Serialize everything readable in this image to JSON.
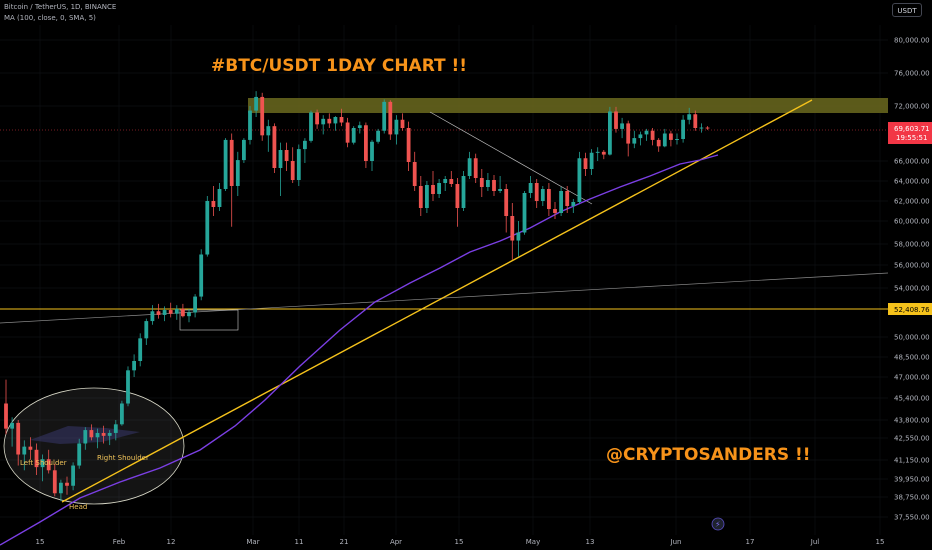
{
  "header": {
    "symbol_line": "Bitcoin / TetherUS, 1D, BINANCE",
    "indicator_line": "MA (100, close, 0, SMA, 5)",
    "currency_button": "USDT"
  },
  "annotations": {
    "title": "#BTC/USDT 1DAY CHART !!",
    "handle": "@CRYPTOSANDERS !!",
    "left_shoulder": "Left Shoulder",
    "right_shoulder": "Right Shoulder",
    "head": "Head"
  },
  "colors": {
    "background": "#000000",
    "up_candle": "#26a69a",
    "down_candle": "#ef5350",
    "ma_line": "#7b3fe4",
    "trendline": "#f5c21b",
    "orange_text": "#f7931a",
    "zone_fill": "#6b6a1e",
    "price_badge_red": "#f23645",
    "support_badge": "#f5c21b"
  },
  "chart_data": {
    "type": "candlestick",
    "y_ticks": [
      "80,000.00",
      "76,000.00",
      "72,000.00",
      "66,000.00",
      "64,000.00",
      "62,000.00",
      "60,000.00",
      "58,000.00",
      "56,000.00",
      "54,000.00",
      "50,000.00",
      "48,500.00",
      "47,000.00",
      "45,400.00",
      "43,800.00",
      "42,550.00",
      "41,150.00",
      "39,950.00",
      "38,750.00",
      "37,550.00"
    ],
    "x_ticks": [
      "15",
      "Feb",
      "12",
      "Mar",
      "11",
      "21",
      "Apr",
      "15",
      "May",
      "13",
      "Jun",
      "17",
      "Jul",
      "15"
    ],
    "current_price": "69,603.71",
    "countdown": "19:55:51",
    "support_price": "52,408.76",
    "resistance_zone": [
      70500,
      72800
    ],
    "ma_label": "MA 100",
    "candles": [
      [
        45000,
        46800,
        42800,
        43200
      ],
      [
        43200,
        44000,
        42000,
        43600
      ],
      [
        43600,
        43800,
        40800,
        41500
      ],
      [
        41500,
        42400,
        40500,
        42000
      ],
      [
        42000,
        42600,
        41200,
        41800
      ],
      [
        41800,
        42200,
        40200,
        40700
      ],
      [
        40700,
        41500,
        39800,
        41200
      ],
      [
        41200,
        41800,
        40300,
        40500
      ],
      [
        40500,
        40900,
        38800,
        39000
      ],
      [
        39000,
        39900,
        38500,
        39700
      ],
      [
        39700,
        40100,
        38900,
        39500
      ],
      [
        39500,
        41000,
        39200,
        40800
      ],
      [
        40800,
        42500,
        40600,
        42200
      ],
      [
        42200,
        43300,
        41800,
        43100
      ],
      [
        43100,
        43500,
        42400,
        42600
      ],
      [
        42600,
        43200,
        41900,
        42900
      ],
      [
        42900,
        43400,
        42200,
        42700
      ],
      [
        42700,
        43100,
        42100,
        42900
      ],
      [
        42900,
        43800,
        42400,
        43500
      ],
      [
        43500,
        45200,
        43400,
        45000
      ],
      [
        45000,
        47800,
        44800,
        47500
      ],
      [
        47500,
        48700,
        47000,
        48200
      ],
      [
        48200,
        50300,
        47800,
        49900
      ],
      [
        49900,
        51500,
        49400,
        51300
      ],
      [
        51300,
        52600,
        51000,
        52100
      ],
      [
        52100,
        52700,
        51500,
        51800
      ],
      [
        51800,
        52500,
        51300,
        52200
      ],
      [
        52200,
        52800,
        51600,
        51900
      ],
      [
        51900,
        52600,
        51400,
        52300
      ],
      [
        52300,
        52700,
        51600,
        51700
      ],
      [
        51700,
        52300,
        51200,
        52000
      ],
      [
        52000,
        53500,
        51600,
        53300
      ],
      [
        53300,
        57500,
        53000,
        57000
      ],
      [
        57000,
        62500,
        56800,
        62000
      ],
      [
        62000,
        63500,
        60500,
        61400
      ],
      [
        61400,
        63800,
        61000,
        63200
      ],
      [
        63200,
        68500,
        63000,
        68300
      ],
      [
        68300,
        69000,
        59500,
        63500
      ],
      [
        63500,
        67000,
        62500,
        66100
      ],
      [
        66100,
        68500,
        65800,
        68300
      ],
      [
        68300,
        72000,
        67800,
        71500
      ],
      [
        71500,
        73800,
        70800,
        73100
      ],
      [
        73100,
        73600,
        68200,
        68800
      ],
      [
        68800,
        70500,
        67000,
        69800
      ],
      [
        69800,
        70100,
        64800,
        65300
      ],
      [
        65300,
        68000,
        62500,
        67200
      ],
      [
        67200,
        68000,
        65000,
        66000
      ],
      [
        66000,
        67500,
        63800,
        64100
      ],
      [
        64100,
        67800,
        63500,
        67300
      ],
      [
        67300,
        68500,
        65800,
        68200
      ],
      [
        68200,
        71500,
        68000,
        71300
      ],
      [
        71300,
        71600,
        69500,
        70000
      ],
      [
        70000,
        71000,
        68900,
        70600
      ],
      [
        70600,
        71200,
        69600,
        70100
      ],
      [
        70100,
        70900,
        69300,
        70800
      ],
      [
        70800,
        71700,
        69800,
        70200
      ],
      [
        70200,
        70700,
        67500,
        68000
      ],
      [
        68000,
        69800,
        67800,
        69600
      ],
      [
        69600,
        70300,
        69000,
        69900
      ],
      [
        69900,
        70200,
        65300,
        66000
      ],
      [
        66000,
        68300,
        65000,
        68100
      ],
      [
        68100,
        69500,
        67900,
        69300
      ],
      [
        69300,
        72800,
        69000,
        72500
      ],
      [
        72500,
        72700,
        68300,
        68900
      ],
      [
        68900,
        71000,
        67800,
        70500
      ],
      [
        70500,
        71200,
        69300,
        69600
      ],
      [
        69600,
        70300,
        65000,
        65900
      ],
      [
        65900,
        67000,
        63000,
        63500
      ],
      [
        63500,
        64500,
        60500,
        61300
      ],
      [
        61300,
        64000,
        60800,
        63600
      ],
      [
        63600,
        65000,
        62000,
        62700
      ],
      [
        62700,
        64200,
        62300,
        63800
      ],
      [
        63800,
        64500,
        63000,
        64200
      ],
      [
        64200,
        65000,
        63400,
        63700
      ],
      [
        63700,
        64300,
        59500,
        61300
      ],
      [
        61300,
        65000,
        61000,
        64500
      ],
      [
        64500,
        67000,
        64200,
        66300
      ],
      [
        66300,
        66800,
        63800,
        64300
      ],
      [
        64300,
        65200,
        62400,
        63400
      ],
      [
        63400,
        64800,
        63000,
        64100
      ],
      [
        64100,
        64600,
        62500,
        63000
      ],
      [
        63000,
        64500,
        62800,
        63200
      ],
      [
        63200,
        63700,
        59000,
        60500
      ],
      [
        60500,
        61800,
        56500,
        58300
      ],
      [
        58300,
        60000,
        56800,
        59000
      ],
      [
        59000,
        63000,
        58800,
        62800
      ],
      [
        62800,
        64500,
        62300,
        63800
      ],
      [
        63800,
        64200,
        61300,
        62000
      ],
      [
        62000,
        63500,
        61500,
        63200
      ],
      [
        63200,
        63800,
        60500,
        61200
      ],
      [
        61200,
        61900,
        60200,
        60800
      ],
      [
        60800,
        63400,
        60500,
        63000
      ],
      [
        63000,
        63500,
        60800,
        61500
      ],
      [
        61500,
        62200,
        60800,
        61900
      ],
      [
        61900,
        67000,
        61700,
        66300
      ],
      [
        66300,
        66900,
        64500,
        65200
      ],
      [
        65200,
        67300,
        64600,
        66900
      ],
      [
        66900,
        67500,
        66000,
        67000
      ],
      [
        67000,
        67200,
        66200,
        66700
      ],
      [
        66700,
        71900,
        66600,
        71400
      ],
      [
        71400,
        71900,
        69100,
        69500
      ],
      [
        69500,
        70700,
        68500,
        70100
      ],
      [
        70100,
        70400,
        66500,
        67900
      ],
      [
        67900,
        69300,
        67400,
        68500
      ],
      [
        68500,
        69200,
        67700,
        68900
      ],
      [
        68900,
        69500,
        68200,
        69300
      ],
      [
        69300,
        69600,
        67700,
        68300
      ],
      [
        68300,
        68500,
        67000,
        67600
      ],
      [
        67600,
        69500,
        67500,
        69000
      ],
      [
        69000,
        69300,
        67600,
        68300
      ],
      [
        68300,
        69000,
        67800,
        68400
      ],
      [
        68400,
        71000,
        68000,
        70500
      ],
      [
        70500,
        71800,
        70000,
        71100
      ],
      [
        71100,
        71500,
        69300,
        69600
      ],
      [
        69600,
        70100,
        69100,
        69650
      ],
      [
        69650,
        69800,
        69400,
        69603
      ]
    ]
  }
}
